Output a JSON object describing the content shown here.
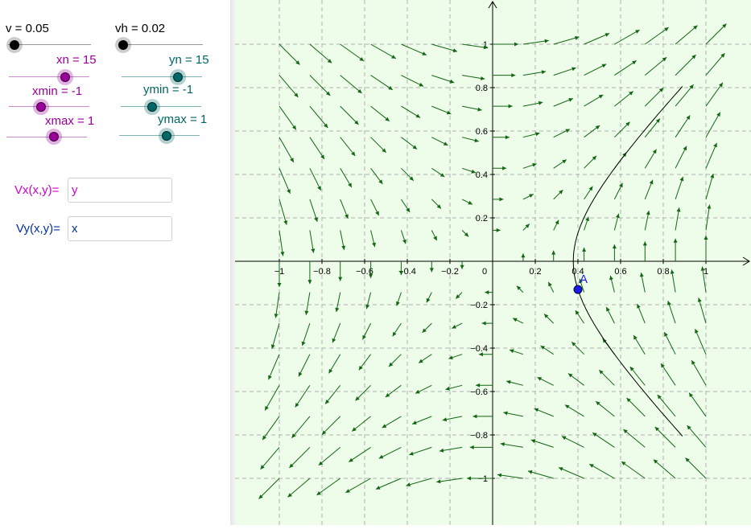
{
  "sliders": [
    {
      "id": "v",
      "label": "v = 0.05",
      "color": "#000000",
      "value": 0.05
    },
    {
      "id": "vh",
      "label": "vh = 0.02",
      "color": "#000000",
      "value": 0.02
    },
    {
      "id": "xn",
      "label": "xn = 15",
      "color": "#990099",
      "value": 15
    },
    {
      "id": "yn",
      "label": "yn = 15",
      "color": "#006666",
      "value": 15
    },
    {
      "id": "xmin",
      "label": "xmin = -1",
      "color": "#990099",
      "value": -1
    },
    {
      "id": "ymin",
      "label": "ymin = -1",
      "color": "#006666",
      "value": -1
    },
    {
      "id": "xmax",
      "label": "xmax = 1",
      "color": "#990099",
      "value": 1
    },
    {
      "id": "ymax",
      "label": "ymax = 1",
      "color": "#006666",
      "value": 1
    }
  ],
  "fields": {
    "vx": {
      "label": "Vx(x,y)=",
      "value": "y",
      "label_color": "#cc00cc",
      "value_color": "#cc00cc"
    },
    "vy": {
      "label": "Vy(x,y)=",
      "value": "x",
      "label_color": "#003399",
      "value_color": "#003399"
    }
  },
  "graph": {
    "background": "#eefcea",
    "grid_color": "#b0b0b0",
    "arrow_color": "#116611",
    "curve_color": "#000000",
    "point": {
      "label": "A",
      "x": 0.4,
      "y": -0.13,
      "color": "#1a1ae6"
    },
    "x_ticks": [
      "−1",
      "−0.8",
      "−0.6",
      "−0.4",
      "−0.2",
      "0",
      "0.2",
      "0.4",
      "0.6",
      "0.8",
      "1"
    ],
    "y_ticks": [
      "1",
      "0.8",
      "0.6",
      "0.4",
      "0.2",
      "−0.2",
      "−0.4",
      "−0.6",
      "−0.8",
      "−1"
    ]
  }
}
